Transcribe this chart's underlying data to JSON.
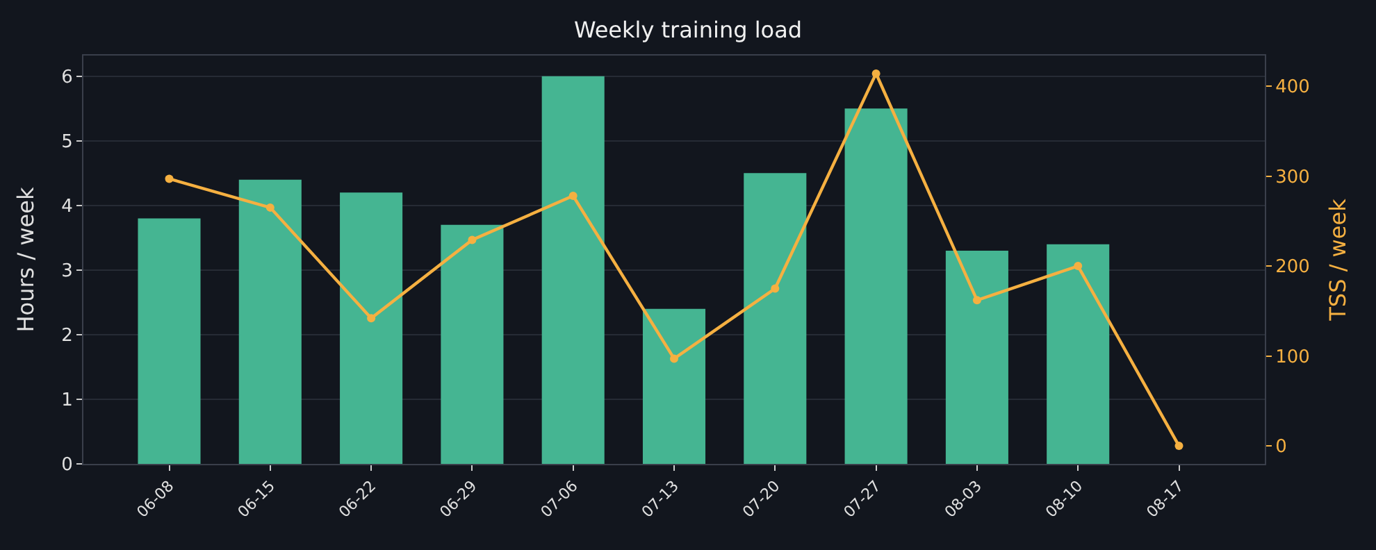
{
  "chart_data": {
    "type": "bar",
    "title": "Weekly training load",
    "ylabel": "Hours / week",
    "y2label": "TSS / week",
    "categories": [
      "06-08",
      "06-15",
      "06-22",
      "06-29",
      "07-06",
      "07-13",
      "07-20",
      "07-27",
      "08-03",
      "08-10",
      "08-17"
    ],
    "series": [
      {
        "color": "#45b592",
        "values": [
          3.8,
          4.4,
          4.2,
          3.7,
          6.0,
          2.4,
          4.5,
          5.5,
          3.3,
          3.4,
          0
        ]
      },
      {
        "type": "line",
        "axis": "y2",
        "color": "#f5b041",
        "values": [
          297,
          265,
          142,
          229,
          278,
          97,
          175,
          414,
          162,
          200,
          0
        ]
      }
    ],
    "ylim": [
      0,
      6.32
    ],
    "yticks": [
      0,
      1,
      2,
      3,
      4,
      5,
      6
    ],
    "y2lim": [
      -20,
      434
    ],
    "y2ticks": [
      0,
      100,
      200,
      300,
      400
    ],
    "grid": "y",
    "marker": "circle",
    "line_style": "solid"
  }
}
